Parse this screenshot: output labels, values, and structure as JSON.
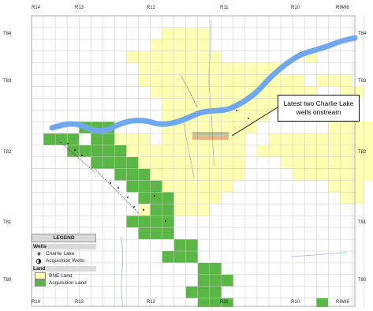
{
  "map": {
    "range_labels_top": [
      "R14",
      "R13",
      "R12",
      "R11",
      "R10",
      "R9W6"
    ],
    "range_labels_bottom": [
      "R14",
      "R13",
      "R12",
      "R11",
      "R10",
      "R9W6"
    ],
    "township_labels_left": [
      "T84",
      "T83",
      "T82",
      "T81",
      "T80"
    ],
    "township_labels_right": [
      "T84",
      "T83",
      "T82",
      "T81",
      "T80"
    ],
    "callout": "Latest two Charlie Lake wells onstream",
    "colors": {
      "bne_land": "#ffffb3",
      "acquisition_land": "#5ab645",
      "river": "#6fa8ee",
      "grid": "#c8c8c8",
      "highlight_well": "#e03030"
    }
  },
  "legend": {
    "title": "LEGEND",
    "wells_heading": "Wells",
    "charlie_lake": "Charlie Lake",
    "acquisition_wells": "Acquisition Wells",
    "land_heading": "Land",
    "bne_land": "BNE Land",
    "acquisition_land": "Acquisition Land"
  }
}
